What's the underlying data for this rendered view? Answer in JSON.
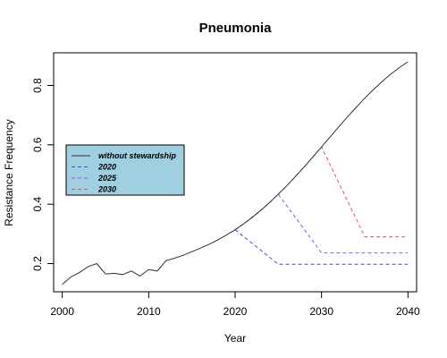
{
  "chart_data": {
    "type": "line",
    "title": "Pneumonia",
    "xlabel": "Year",
    "ylabel": "Resistance Frequency",
    "xlim": [
      1999,
      2041
    ],
    "ylim": [
      0.105,
      0.91
    ],
    "xticks": [
      2000,
      2010,
      2020,
      2030,
      2040
    ],
    "yticks": [
      0.2,
      0.4,
      0.6,
      0.8
    ],
    "grid": false,
    "legend_position": "left-middle",
    "legend_background": "#9fcfe0",
    "series": [
      {
        "name": "without stewardship",
        "color": "#333333",
        "style": "solid",
        "x": [
          2000,
          2001,
          2002,
          2003,
          2004,
          2005,
          2006,
          2007,
          2008,
          2009,
          2010,
          2011,
          2012,
          2013,
          2014,
          2015,
          2016,
          2017,
          2018,
          2019,
          2020,
          2021,
          2022,
          2023,
          2024,
          2025,
          2026,
          2027,
          2028,
          2029,
          2030,
          2031,
          2032,
          2033,
          2034,
          2035,
          2036,
          2037,
          2038,
          2039,
          2040
        ],
        "y": [
          0.13,
          0.155,
          0.17,
          0.19,
          0.2,
          0.165,
          0.167,
          0.163,
          0.175,
          0.158,
          0.18,
          0.175,
          0.21,
          0.218,
          0.228,
          0.24,
          0.252,
          0.265,
          0.28,
          0.296,
          0.314,
          0.334,
          0.356,
          0.38,
          0.406,
          0.434,
          0.463,
          0.494,
          0.526,
          0.559,
          0.593,
          0.627,
          0.661,
          0.694,
          0.726,
          0.757,
          0.786,
          0.813,
          0.838,
          0.86,
          0.88
        ]
      },
      {
        "name": "2020",
        "color": "#3355cc",
        "style": "dashed",
        "x": [
          2020,
          2025,
          2040
        ],
        "y": [
          0.314,
          0.198,
          0.198
        ]
      },
      {
        "name": "2025",
        "color": "#9955dd",
        "style": "dashed",
        "x": [
          2020,
          2021,
          2022,
          2023,
          2024,
          2025,
          2030,
          2040
        ],
        "y": [
          0.314,
          0.334,
          0.356,
          0.38,
          0.406,
          0.434,
          0.236,
          0.236
        ]
      },
      {
        "name": "2030",
        "color": "#e05555",
        "style": "dashed",
        "x": [
          2020,
          2021,
          2022,
          2023,
          2024,
          2025,
          2026,
          2027,
          2028,
          2029,
          2030,
          2035,
          2040
        ],
        "y": [
          0.314,
          0.334,
          0.356,
          0.38,
          0.406,
          0.434,
          0.463,
          0.494,
          0.526,
          0.559,
          0.593,
          0.29,
          0.29
        ]
      }
    ]
  }
}
